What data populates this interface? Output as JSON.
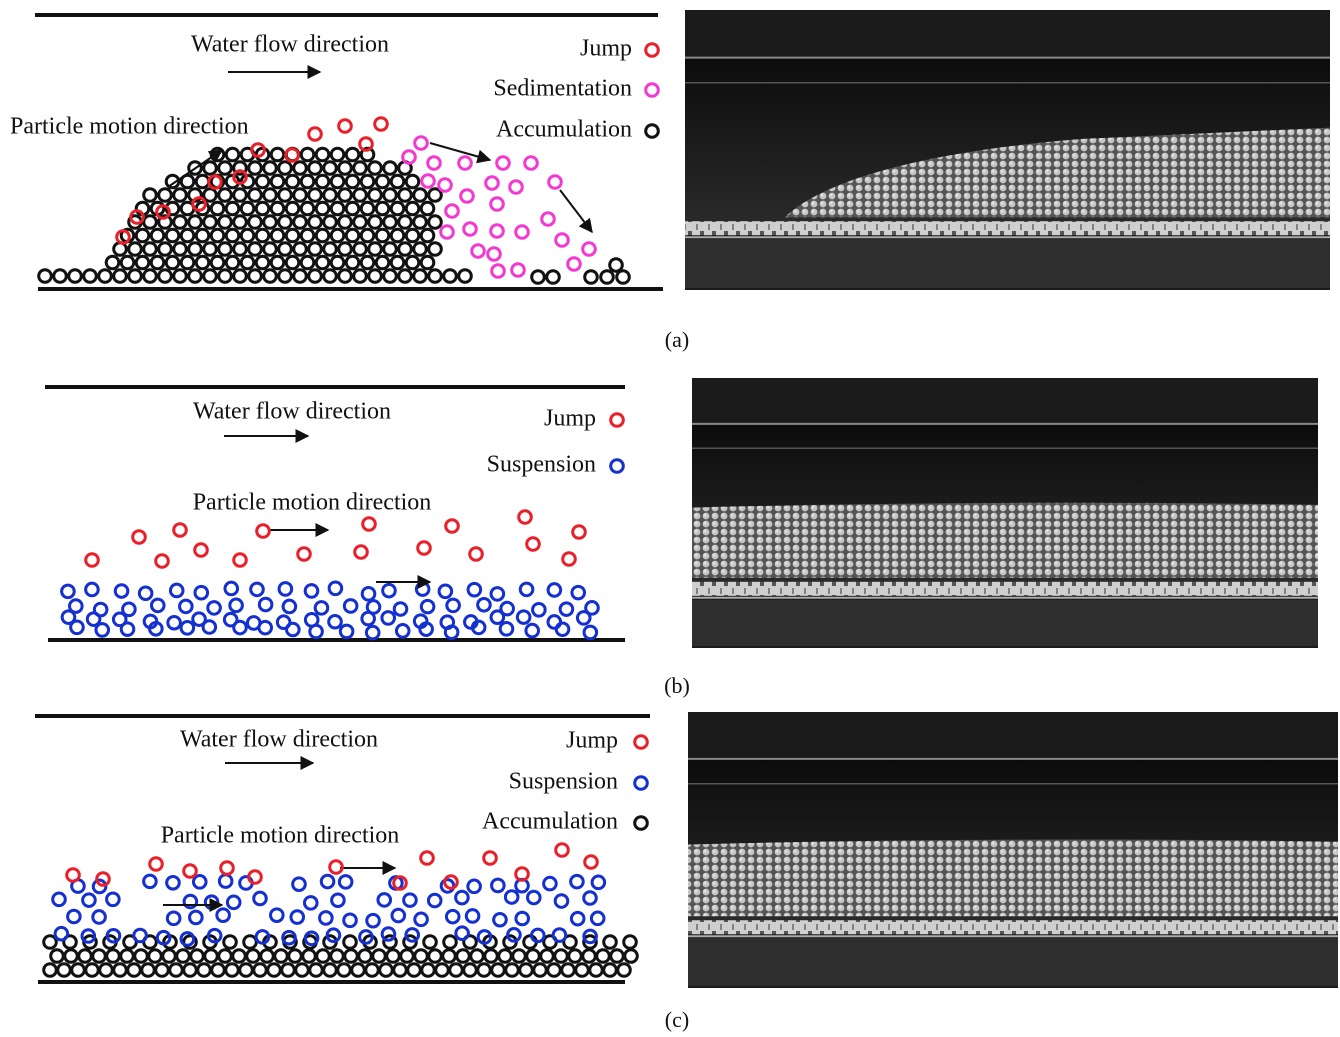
{
  "panels": [
    {
      "water_flow": "Water flow direction",
      "particle_motion": "Particle motion direction",
      "caption": "(a)",
      "legend": [
        {
          "name": "Jump",
          "color": "#e8202a"
        },
        {
          "name": "Sedimentation",
          "color": "#f23ad0"
        },
        {
          "name": "Accumulation",
          "color": "#111111"
        }
      ]
    },
    {
      "water_flow": "Water flow direction",
      "particle_motion": "Particle motion direction",
      "caption": "(b)",
      "legend": [
        {
          "name": "Jump",
          "color": "#e8202a"
        },
        {
          "name": "Suspension",
          "color": "#1530d0"
        }
      ]
    },
    {
      "water_flow": "Water flow direction",
      "particle_motion": "Particle motion direction",
      "caption": "(c)",
      "legend": [
        {
          "name": "Jump",
          "color": "#e8202a"
        },
        {
          "name": "Suspension",
          "color": "#1530d0"
        },
        {
          "name": "Accumulation",
          "color": "#111111"
        }
      ]
    }
  ]
}
